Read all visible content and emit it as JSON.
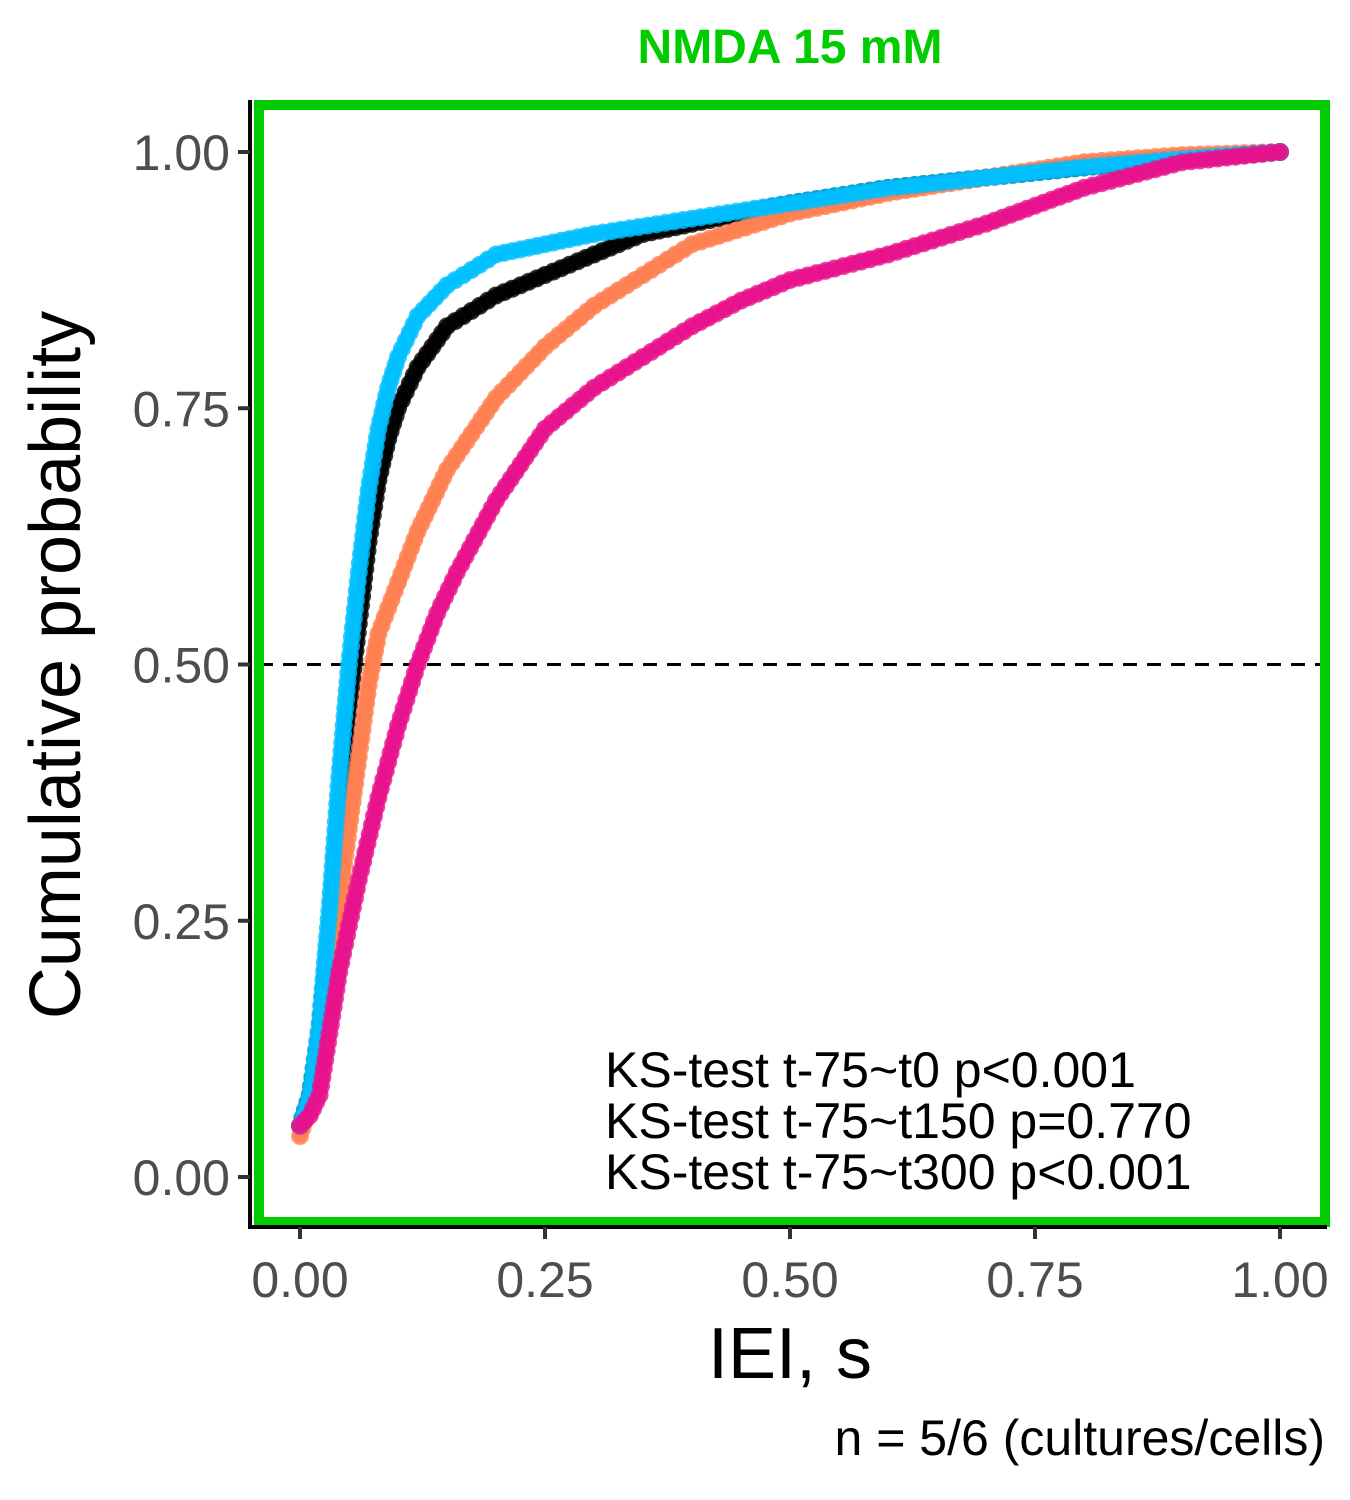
{
  "chart_data": {
    "type": "scatter",
    "title": "NMDA 15 mM",
    "title_color": "#00cc00",
    "frame_color": "#00cc00",
    "xlabel": "IEI, s",
    "ylabel": "Cumulative probability",
    "caption": "n = 5/6 (cultures/cells)",
    "xlim": [
      0,
      1
    ],
    "ylim": [
      0,
      1
    ],
    "x_ticks": [
      "0.00",
      "0.25",
      "0.50",
      "0.75",
      "1.00"
    ],
    "y_ticks": [
      "0.00",
      "0.25",
      "0.50",
      "0.75",
      "1.00"
    ],
    "reference_line": {
      "y": 0.5,
      "style": "dashed"
    },
    "grid": false,
    "legend": "none",
    "annotations": [
      "KS-test t-75~t0 p<0.001",
      "KS-test t-75~t150 p=0.770",
      "KS-test t-75~t300 p<0.001"
    ],
    "series": [
      {
        "color": "#000000",
        "points": [
          [
            0,
            0.05
          ],
          [
            0.01,
            0.08
          ],
          [
            0.02,
            0.14
          ],
          [
            0.03,
            0.24
          ],
          [
            0.04,
            0.36
          ],
          [
            0.05,
            0.46
          ],
          [
            0.06,
            0.54
          ],
          [
            0.07,
            0.62
          ],
          [
            0.08,
            0.68
          ],
          [
            0.09,
            0.72
          ],
          [
            0.1,
            0.75
          ],
          [
            0.12,
            0.79
          ],
          [
            0.15,
            0.83
          ],
          [
            0.2,
            0.86
          ],
          [
            0.25,
            0.88
          ],
          [
            0.3,
            0.9
          ],
          [
            0.35,
            0.92
          ],
          [
            0.4,
            0.93
          ],
          [
            0.5,
            0.95
          ],
          [
            0.6,
            0.965
          ],
          [
            0.7,
            0.975
          ],
          [
            0.8,
            0.985
          ],
          [
            0.9,
            0.993
          ],
          [
            1.0,
            1.0
          ]
        ]
      },
      {
        "color": "#ff7f50",
        "points": [
          [
            0,
            0.04
          ],
          [
            0.01,
            0.07
          ],
          [
            0.02,
            0.12
          ],
          [
            0.03,
            0.2
          ],
          [
            0.04,
            0.27
          ],
          [
            0.05,
            0.34
          ],
          [
            0.06,
            0.41
          ],
          [
            0.07,
            0.48
          ],
          [
            0.08,
            0.53
          ],
          [
            0.1,
            0.58
          ],
          [
            0.12,
            0.63
          ],
          [
            0.15,
            0.69
          ],
          [
            0.2,
            0.76
          ],
          [
            0.25,
            0.81
          ],
          [
            0.3,
            0.85
          ],
          [
            0.35,
            0.88
          ],
          [
            0.4,
            0.91
          ],
          [
            0.5,
            0.94
          ],
          [
            0.6,
            0.96
          ],
          [
            0.7,
            0.975
          ],
          [
            0.8,
            0.99
          ],
          [
            0.9,
            0.997
          ],
          [
            1.0,
            1.0
          ]
        ]
      },
      {
        "color": "#00bfff",
        "points": [
          [
            0,
            0.05
          ],
          [
            0.01,
            0.08
          ],
          [
            0.02,
            0.15
          ],
          [
            0.03,
            0.26
          ],
          [
            0.04,
            0.39
          ],
          [
            0.05,
            0.5
          ],
          [
            0.06,
            0.59
          ],
          [
            0.07,
            0.67
          ],
          [
            0.08,
            0.73
          ],
          [
            0.09,
            0.77
          ],
          [
            0.1,
            0.8
          ],
          [
            0.12,
            0.84
          ],
          [
            0.15,
            0.87
          ],
          [
            0.2,
            0.9
          ],
          [
            0.25,
            0.91
          ],
          [
            0.3,
            0.92
          ],
          [
            0.4,
            0.935
          ],
          [
            0.5,
            0.95
          ],
          [
            0.6,
            0.965
          ],
          [
            0.7,
            0.975
          ],
          [
            0.8,
            0.985
          ],
          [
            0.9,
            0.993
          ],
          [
            1.0,
            1.0
          ]
        ]
      },
      {
        "color": "#e7128c",
        "points": [
          [
            0,
            0.05
          ],
          [
            0.01,
            0.06
          ],
          [
            0.02,
            0.08
          ],
          [
            0.03,
            0.14
          ],
          [
            0.04,
            0.2
          ],
          [
            0.06,
            0.29
          ],
          [
            0.08,
            0.37
          ],
          [
            0.1,
            0.44
          ],
          [
            0.12,
            0.5
          ],
          [
            0.14,
            0.55
          ],
          [
            0.16,
            0.59
          ],
          [
            0.2,
            0.66
          ],
          [
            0.25,
            0.73
          ],
          [
            0.3,
            0.77
          ],
          [
            0.35,
            0.8
          ],
          [
            0.4,
            0.83
          ],
          [
            0.45,
            0.855
          ],
          [
            0.5,
            0.875
          ],
          [
            0.6,
            0.9
          ],
          [
            0.7,
            0.93
          ],
          [
            0.8,
            0.965
          ],
          [
            0.9,
            0.99
          ],
          [
            1.0,
            1.0
          ]
        ]
      }
    ]
  }
}
